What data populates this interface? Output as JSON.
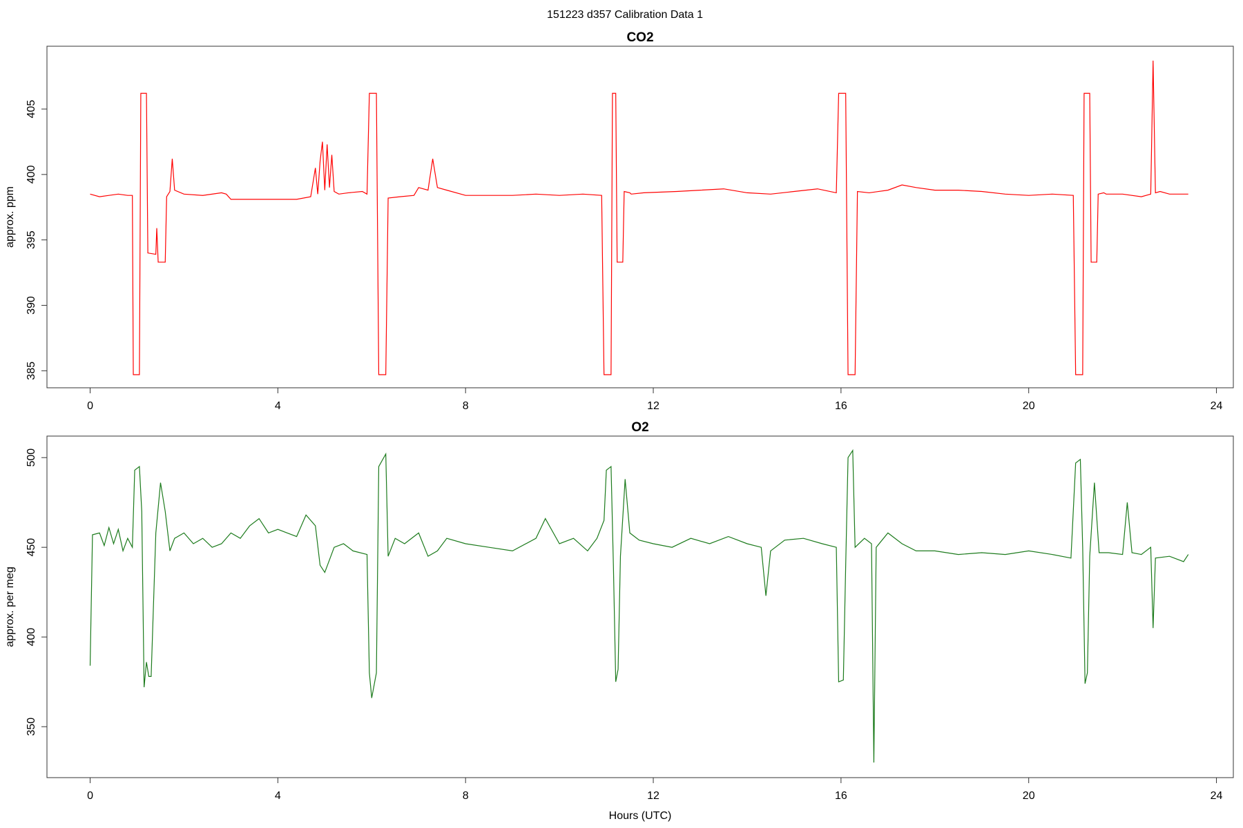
{
  "title": "151223   d357   Calibration Data 1",
  "chart_data": [
    {
      "type": "line",
      "title": "CO2",
      "ylabel": "approx. ppm",
      "color": "#ff0000",
      "xlim": [
        -0.92,
        24.36
      ],
      "ylim": [
        383.7,
        409.8
      ],
      "xticks": [
        0,
        4,
        8,
        12,
        16,
        20,
        24
      ],
      "yticks": [
        385,
        390,
        395,
        400,
        405
      ],
      "x": [
        0,
        0.2,
        0.4,
        0.6,
        0.8,
        0.9,
        0.92,
        1.05,
        1.08,
        1.2,
        1.23,
        1.4,
        1.42,
        1.45,
        1.48,
        1.6,
        1.63,
        1.7,
        1.75,
        1.8,
        2.0,
        2.4,
        2.8,
        2.9,
        3.0,
        3.5,
        4.0,
        4.4,
        4.7,
        4.8,
        4.85,
        4.9,
        4.95,
        5.0,
        5.05,
        5.1,
        5.15,
        5.2,
        5.3,
        5.5,
        5.8,
        5.9,
        5.95,
        6.1,
        6.15,
        6.3,
        6.35,
        6.6,
        6.9,
        7.0,
        7.2,
        7.3,
        7.4,
        7.6,
        8.0,
        8.5,
        9.0,
        9.5,
        10.0,
        10.5,
        10.9,
        10.95,
        11.1,
        11.13,
        11.2,
        11.23,
        11.35,
        11.38,
        11.5,
        11.53,
        11.8,
        12.5,
        13.0,
        13.5,
        14.0,
        14.5,
        15.0,
        15.5,
        15.9,
        15.95,
        16.1,
        16.15,
        16.3,
        16.35,
        16.6,
        17.0,
        17.3,
        17.6,
        18.0,
        18.5,
        19.0,
        19.5,
        20.0,
        20.5,
        20.95,
        21.0,
        21.15,
        21.18,
        21.3,
        21.33,
        21.45,
        21.48,
        21.6,
        21.65,
        22.0,
        22.4,
        22.6,
        22.65,
        22.7,
        22.8,
        23.0,
        23.4
      ],
      "values": [
        398.5,
        398.3,
        398.4,
        398.5,
        398.4,
        398.4,
        384.7,
        384.7,
        406.2,
        406.2,
        394.0,
        393.9,
        395.9,
        393.3,
        393.3,
        393.3,
        398.3,
        398.7,
        401.2,
        398.8,
        398.5,
        398.4,
        398.6,
        398.5,
        398.1,
        398.1,
        398.1,
        398.1,
        398.3,
        400.5,
        398.5,
        401.0,
        402.5,
        398.8,
        402.3,
        399.0,
        401.5,
        398.7,
        398.5,
        398.6,
        398.7,
        398.5,
        406.2,
        406.2,
        384.7,
        384.7,
        398.2,
        398.3,
        398.4,
        399.0,
        398.8,
        401.2,
        399.0,
        398.8,
        398.4,
        398.4,
        398.4,
        398.5,
        398.4,
        398.5,
        398.4,
        384.7,
        384.7,
        406.2,
        406.2,
        393.3,
        393.3,
        398.7,
        398.6,
        398.5,
        398.6,
        398.7,
        398.8,
        398.9,
        398.6,
        398.5,
        398.7,
        398.9,
        398.6,
        406.2,
        406.2,
        384.7,
        384.7,
        398.7,
        398.6,
        398.8,
        399.2,
        399.0,
        398.8,
        398.8,
        398.7,
        398.5,
        398.4,
        398.5,
        398.4,
        384.7,
        384.7,
        406.2,
        406.2,
        393.3,
        393.3,
        398.5,
        398.6,
        398.5,
        398.5,
        398.3,
        398.5,
        408.7,
        398.6,
        398.7,
        398.5,
        398.5
      ]
    },
    {
      "type": "line",
      "title": "O2",
      "ylabel": "approx. per meg",
      "xlabel": "Hours (UTC)",
      "color": "#1b7a1b",
      "xlim": [
        -0.92,
        24.36
      ],
      "ylim": [
        321.6,
        512
      ],
      "xticks": [
        0,
        4,
        8,
        12,
        16,
        20,
        24
      ],
      "yticks": [
        350,
        400,
        450,
        500
      ],
      "x": [
        0,
        0.05,
        0.2,
        0.3,
        0.4,
        0.5,
        0.6,
        0.7,
        0.8,
        0.9,
        0.95,
        1.05,
        1.1,
        1.15,
        1.2,
        1.25,
        1.3,
        1.4,
        1.5,
        1.6,
        1.7,
        1.8,
        2.0,
        2.2,
        2.4,
        2.6,
        2.8,
        3.0,
        3.2,
        3.4,
        3.6,
        3.8,
        4.0,
        4.2,
        4.4,
        4.6,
        4.8,
        4.9,
        5.0,
        5.2,
        5.4,
        5.6,
        5.9,
        5.95,
        6.0,
        6.1,
        6.15,
        6.3,
        6.35,
        6.5,
        6.7,
        7.0,
        7.2,
        7.4,
        7.6,
        8.0,
        8.5,
        9.0,
        9.5,
        9.7,
        10.0,
        10.3,
        10.6,
        10.8,
        10.95,
        11.0,
        11.1,
        11.15,
        11.2,
        11.25,
        11.3,
        11.4,
        11.5,
        11.7,
        12.0,
        12.4,
        12.8,
        13.2,
        13.6,
        14.0,
        14.3,
        14.4,
        14.5,
        14.8,
        15.2,
        15.6,
        15.9,
        15.95,
        16.05,
        16.1,
        16.15,
        16.25,
        16.3,
        16.5,
        16.65,
        16.7,
        16.75,
        17.0,
        17.3,
        17.6,
        18.0,
        18.5,
        19.0,
        19.5,
        20.0,
        20.5,
        20.9,
        21.0,
        21.1,
        21.15,
        21.2,
        21.25,
        21.3,
        21.4,
        21.5,
        21.7,
        22.0,
        22.1,
        22.2,
        22.4,
        22.6,
        22.65,
        22.7,
        23.0,
        23.3,
        23.4
      ],
      "values": [
        384,
        457,
        458,
        451,
        461,
        452,
        460,
        448,
        455,
        450,
        493,
        495,
        470,
        372,
        386,
        378,
        378,
        458,
        486,
        470,
        448,
        455,
        458,
        452,
        455,
        450,
        452,
        458,
        455,
        462,
        466,
        458,
        460,
        458,
        456,
        468,
        462,
        440,
        436,
        450,
        452,
        448,
        446,
        380,
        366,
        380,
        495,
        502,
        445,
        455,
        452,
        458,
        445,
        448,
        455,
        452,
        450,
        448,
        455,
        466,
        452,
        455,
        448,
        455,
        465,
        493,
        495,
        440,
        375,
        382,
        445,
        488,
        458,
        454,
        452,
        450,
        455,
        452,
        456,
        452,
        450,
        423,
        448,
        454,
        455,
        452,
        450,
        375,
        376,
        440,
        500,
        504,
        450,
        455,
        452,
        330,
        450,
        458,
        452,
        448,
        448,
        446,
        447,
        446,
        448,
        446,
        444,
        497,
        499,
        450,
        374,
        380,
        445,
        486,
        447,
        447,
        446,
        475,
        447,
        446,
        450,
        405,
        444,
        445,
        442,
        446
      ]
    }
  ]
}
